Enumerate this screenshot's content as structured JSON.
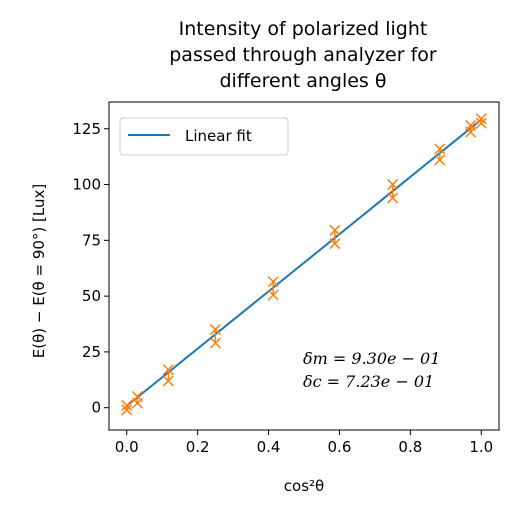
{
  "chart_data": {
    "type": "scatter",
    "title_lines": [
      "Intensity of polarized light",
      "passed through analyzer for",
      "different angles θ"
    ],
    "xlabel": "cos²θ",
    "ylabel": "E(θ) − E(θ = 90°) [Lux]",
    "xlim": [
      -0.05,
      1.05
    ],
    "ylim": [
      -10,
      137
    ],
    "xticks": [
      0.0,
      0.2,
      0.4,
      0.6,
      0.8,
      1.0
    ],
    "xtick_labels": [
      "0.0",
      "0.2",
      "0.4",
      "0.6",
      "0.8",
      "1.0"
    ],
    "yticks": [
      0,
      25,
      50,
      75,
      100,
      125
    ],
    "ytick_labels": [
      "0",
      "25",
      "50",
      "75",
      "100",
      "125"
    ],
    "grid": false,
    "legend_position": "top-left",
    "series": [
      {
        "name": "Linear fit",
        "kind": "line",
        "color": "#1f77b4",
        "slope": 128.3,
        "intercept": 0.8,
        "x_range": [
          0.0,
          1.0
        ]
      },
      {
        "kind": "errorbar-scatter",
        "color": "#ff7f0e",
        "marker": "x",
        "points": [
          {
            "x": 0.0,
            "y": 0.0,
            "yerr": 1.0
          },
          {
            "x": 0.03,
            "y": 3.5,
            "yerr": 1.5
          },
          {
            "x": 0.117,
            "y": 14.5,
            "yerr": 2.5
          },
          {
            "x": 0.25,
            "y": 32.0,
            "yerr": 3.0
          },
          {
            "x": 0.413,
            "y": 53.5,
            "yerr": 3.0
          },
          {
            "x": 0.587,
            "y": 76.5,
            "yerr": 3.0
          },
          {
            "x": 0.75,
            "y": 97.0,
            "yerr": 3.0
          },
          {
            "x": 0.883,
            "y": 113.5,
            "yerr": 2.5
          },
          {
            "x": 0.97,
            "y": 125.0,
            "yerr": 1.5
          },
          {
            "x": 1.0,
            "y": 128.5,
            "yerr": 1.0
          }
        ]
      }
    ],
    "annotations": [
      "δm = 9.30e − 01",
      "δc = 7.23e − 01"
    ]
  }
}
